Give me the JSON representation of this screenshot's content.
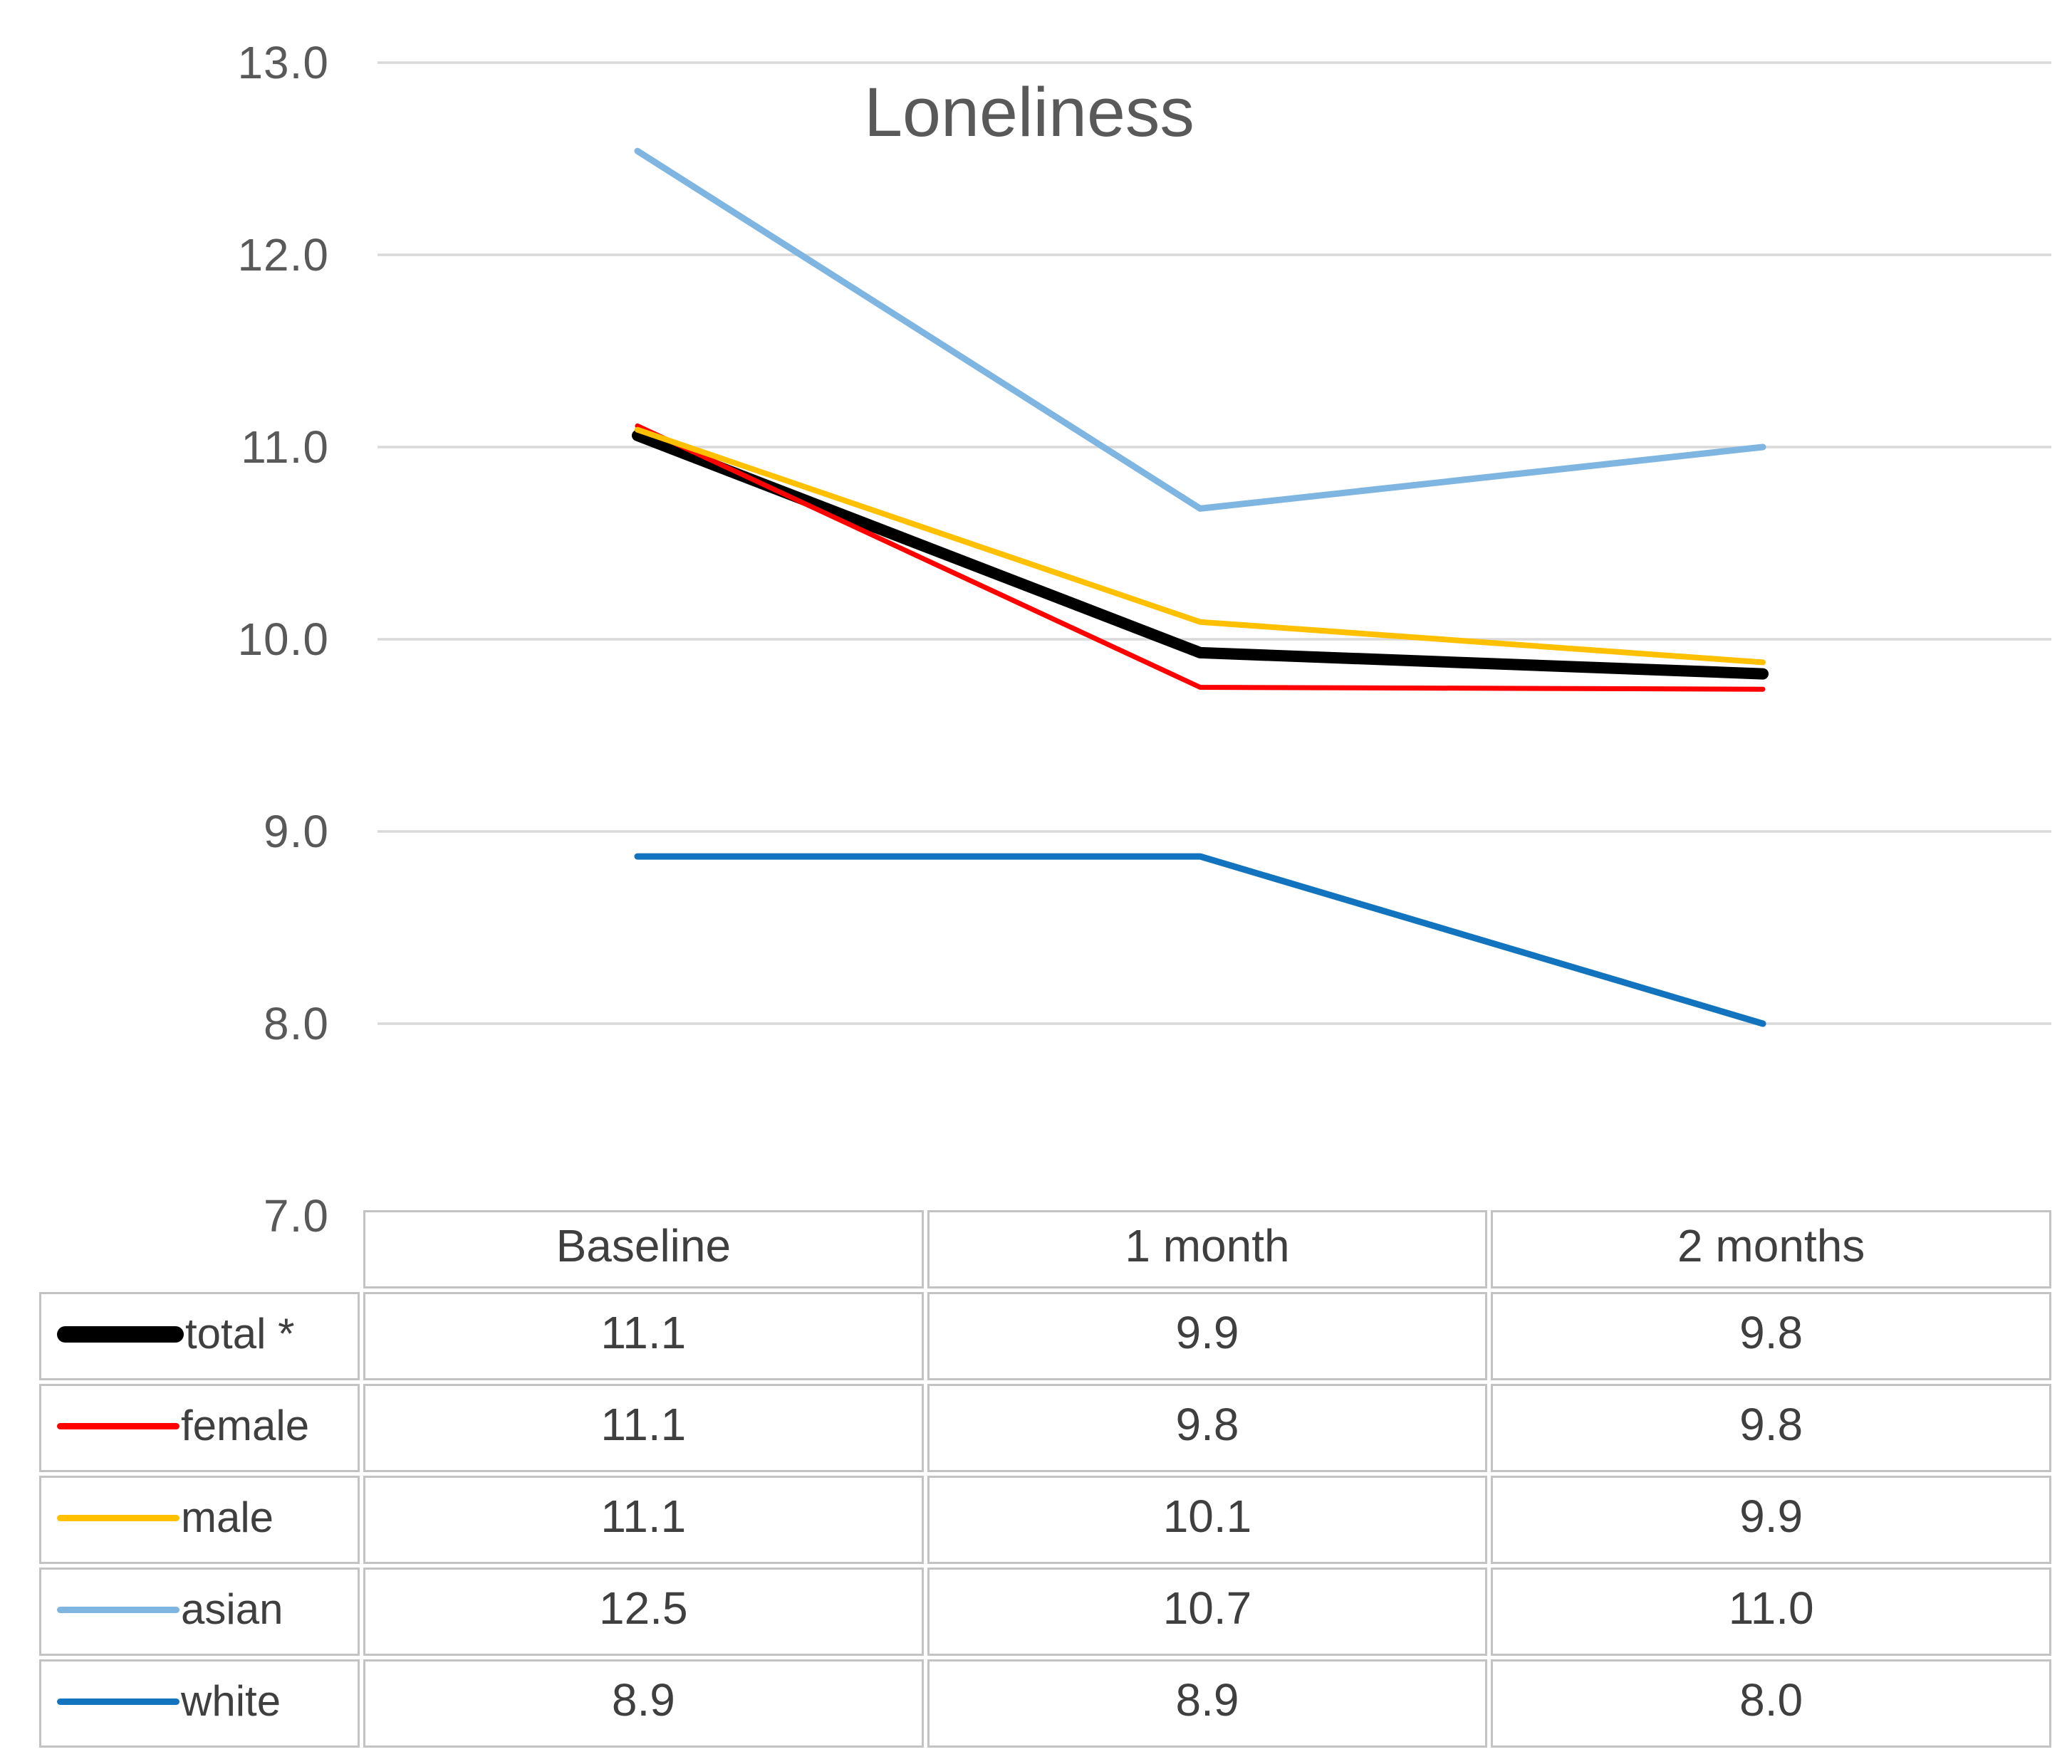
{
  "title": "Loneliness",
  "y_axis": {
    "labels": [
      "13.0",
      "12.0",
      "11.0",
      "10.0",
      "9.0",
      "8.0",
      "7.0"
    ],
    "min": 7.0,
    "max": 13.0,
    "step": 1.0
  },
  "table": {
    "columns": [
      "Baseline",
      "1 month",
      "2 months"
    ],
    "rows": [
      {
        "label": "total *",
        "values": [
          "11.1",
          "9.9",
          "9.8"
        ]
      },
      {
        "label": "female",
        "values": [
          "11.1",
          "9.8",
          "9.8"
        ]
      },
      {
        "label": "male",
        "values": [
          "11.1",
          "10.1",
          "9.9"
        ]
      },
      {
        "label": "asian",
        "values": [
          "12.5",
          "10.7",
          "11.0"
        ]
      },
      {
        "label": "white",
        "values": [
          "8.9",
          "8.9",
          "8.0"
        ]
      }
    ]
  },
  "chart_data": {
    "type": "line",
    "title": "Loneliness",
    "categories": [
      "Baseline",
      "1 month",
      "2 months"
    ],
    "series": [
      {
        "name": "total*",
        "values": [
          11.1,
          9.9,
          9.8
        ],
        "plot": [
          11.06,
          9.93,
          9.82
        ],
        "color": "#000000",
        "width": 16
      },
      {
        "name": "female",
        "values": [
          11.1,
          9.8,
          9.8
        ],
        "plot": [
          11.11,
          9.75,
          9.74
        ],
        "color": "#FF0000",
        "width": 7
      },
      {
        "name": "male",
        "values": [
          11.1,
          10.1,
          9.9
        ],
        "plot": [
          11.09,
          10.09,
          9.88
        ],
        "color": "#FFC000",
        "width": 8
      },
      {
        "name": "asian",
        "values": [
          12.5,
          10.7,
          11.0
        ],
        "plot": [
          12.54,
          10.68,
          11.0
        ],
        "color": "#7FB5E1",
        "width": 9
      },
      {
        "name": "white",
        "values": [
          8.9,
          8.9,
          8.0
        ],
        "plot": [
          8.87,
          8.87,
          8.0
        ],
        "color": "#1273BE",
        "width": 9
      }
    ],
    "ylim": [
      7.0,
      13.0
    ],
    "grid": true,
    "gridline_color": "#D9D9D9",
    "legend_position": "table-left-column"
  },
  "colors": {
    "title_text": "#595959",
    "axis_text": "#595959",
    "table_text": "#3F3F3F",
    "table_border": "#C3C3C3",
    "background": "#FFFFFF"
  }
}
